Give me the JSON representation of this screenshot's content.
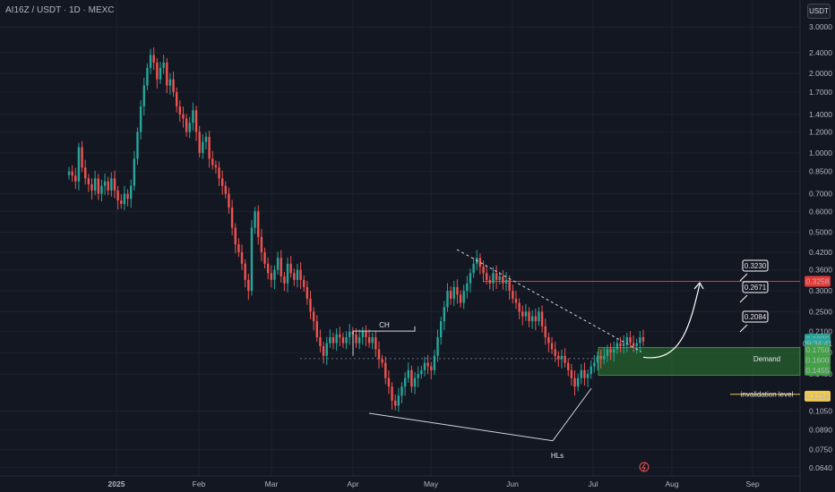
{
  "header": {
    "title": "AI16Z / USDT · 1D · MEXC",
    "currency_button": "USDT"
  },
  "colors": {
    "up": "#26a69a",
    "down": "#ef5350",
    "bg": "#131722",
    "demand": "#2e7d32",
    "resistance": "#e53935"
  },
  "chart_data": {
    "type": "candlestick",
    "y_scale": "log",
    "ylim": [
      0.0615,
      3.3
    ],
    "y_ticks": [
      "3.0000",
      "2.4000",
      "2.0000",
      "1.7000",
      "1.4000",
      "1.2000",
      "1.0000",
      "0.8500",
      "0.7000",
      "0.6000",
      "0.5000",
      "0.4200",
      "0.3600",
      "0.3000",
      "0.2500",
      "0.2100",
      "0.1750",
      "0.1450",
      "0.1050",
      "0.0890",
      "0.0750",
      "0.0640"
    ],
    "x_ticks": [
      "2025",
      "Feb",
      "Mar",
      "Apr",
      "May",
      "Jun",
      "Jul",
      "Aug",
      "Sep"
    ],
    "price_tags": [
      {
        "label": "0.3258",
        "value": 0.3258,
        "color": "#e53935"
      },
      {
        "label": "0.1926",
        "value": 0.1965,
        "color": "#26a69a"
      },
      {
        "label": "09:34:41",
        "value": 0.1895,
        "color": "#26a69a"
      },
      {
        "label": "0.1750",
        "value": 0.179,
        "color": "#43a047"
      },
      {
        "label": "0.1600",
        "value": 0.164,
        "color": "#43a047"
      },
      {
        "label": "0.1455",
        "value": 0.15,
        "color": "#43a047"
      },
      {
        "label": "0.1216",
        "value": 0.1195,
        "color": "#f2c94c"
      }
    ],
    "approx_closes_note": "",
    "annotations": {
      "ch": "CH",
      "hls": "HLs",
      "demand": "Demand",
      "invalidation": "invalidation level",
      "targets": [
        "0.3230",
        "0.2671",
        "0.2084"
      ]
    },
    "levels": {
      "resistance": 0.3258,
      "demand_top": 0.183,
      "demand_bottom": 0.1435,
      "invalidation": 0.1216,
      "ch_level": 0.211
    },
    "series": [
      {
        "closes": [
          0.85,
          0.82,
          0.78,
          1.05,
          0.88,
          0.8,
          0.76,
          0.72,
          0.8,
          0.7,
          0.75,
          0.78,
          0.72,
          0.8,
          0.72,
          0.66,
          0.64,
          0.7,
          0.67,
          0.75,
          0.95,
          1.2,
          1.5,
          1.8,
          2.1,
          2.35,
          2.2,
          1.9,
          2.1,
          2.2,
          1.8,
          1.9,
          1.7,
          1.5,
          1.4,
          1.35,
          1.2,
          1.3,
          1.45,
          1.2,
          1.0,
          1.1,
          1.15,
          0.95,
          0.9,
          0.88,
          0.8,
          0.75,
          0.7,
          0.62,
          0.52,
          0.45,
          0.42,
          0.38,
          0.33,
          0.3,
          0.52,
          0.6,
          0.48,
          0.42,
          0.38,
          0.35,
          0.33,
          0.36,
          0.4,
          0.34,
          0.32,
          0.38,
          0.35,
          0.33,
          0.36,
          0.33,
          0.31,
          0.28,
          0.25,
          0.23,
          0.2,
          0.185,
          0.17,
          0.19,
          0.2,
          0.19,
          0.205,
          0.2,
          0.19,
          0.2,
          0.21,
          0.205,
          0.19,
          0.2,
          0.21,
          0.2,
          0.19,
          0.2,
          0.18,
          0.165,
          0.16,
          0.14,
          0.13,
          0.115,
          0.11,
          0.12,
          0.13,
          0.14,
          0.15,
          0.13,
          0.14,
          0.145,
          0.15,
          0.16,
          0.155,
          0.15,
          0.17,
          0.2,
          0.23,
          0.26,
          0.3,
          0.28,
          0.31,
          0.29,
          0.27,
          0.3,
          0.32,
          0.35,
          0.38,
          0.4,
          0.37,
          0.35,
          0.33,
          0.32,
          0.35,
          0.33,
          0.34,
          0.32,
          0.33,
          0.3,
          0.28,
          0.27,
          0.25,
          0.24,
          0.25,
          0.23,
          0.24,
          0.23,
          0.25,
          0.22,
          0.2,
          0.19,
          0.18,
          0.17,
          0.165,
          0.17,
          0.16,
          0.15,
          0.14,
          0.13,
          0.14,
          0.15,
          0.14,
          0.145,
          0.155,
          0.16,
          0.17,
          0.165,
          0.17,
          0.18,
          0.175,
          0.18,
          0.19,
          0.185,
          0.19,
          0.2,
          0.19,
          0.185,
          0.19,
          0.2,
          0.193
        ]
      }
    ]
  }
}
